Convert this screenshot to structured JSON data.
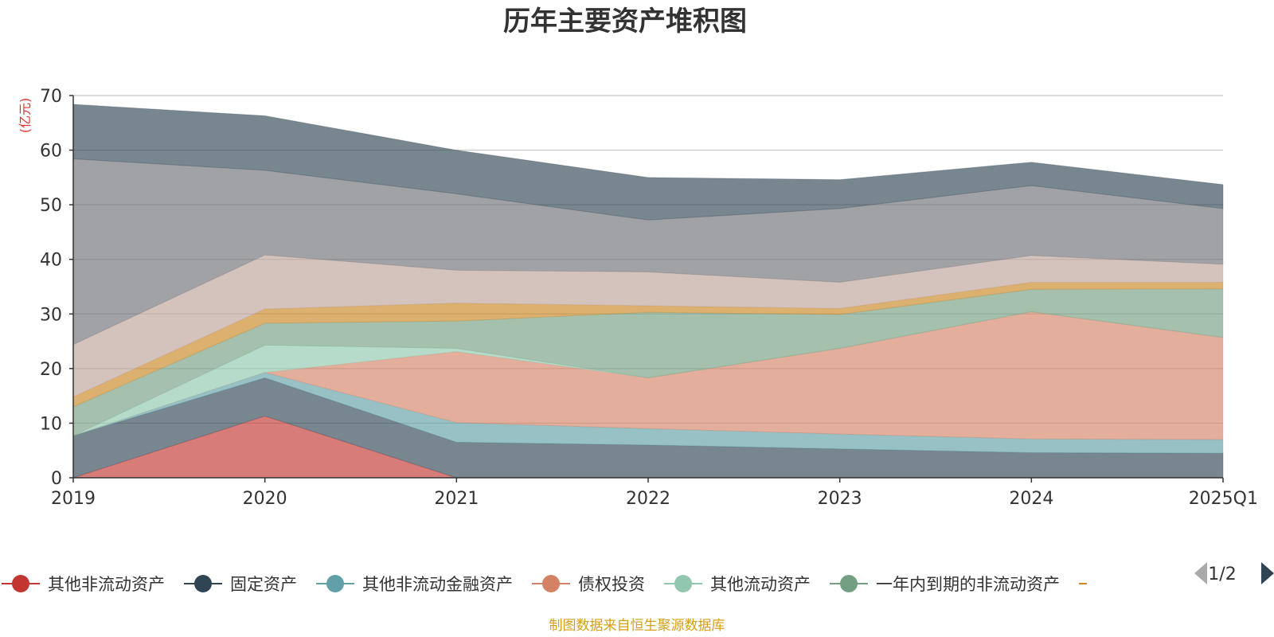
{
  "chart_data": {
    "type": "area",
    "stacked": true,
    "title": "历年主要资产堆积图",
    "unit_label": "(亿元)",
    "categories": [
      "2019",
      "2020",
      "2021",
      "2022",
      "2023",
      "2024",
      "2025Q1"
    ],
    "ylim": [
      0,
      70
    ],
    "yticks": [
      0,
      10,
      20,
      30,
      40,
      50,
      60,
      70
    ],
    "grid": true,
    "series": [
      {
        "name": "其他非流动资产",
        "color": "#c23531",
        "values": [
          0,
          11.3,
          0,
          0,
          0,
          0,
          0
        ]
      },
      {
        "name": "固定资产",
        "color": "#2f4554",
        "values": [
          7.7,
          7.0,
          6.5,
          6.0,
          5.3,
          4.6,
          4.5
        ]
      },
      {
        "name": "其他非流动金融资产",
        "color": "#61a0a8",
        "values": [
          0,
          1.0,
          3.6,
          3.0,
          2.7,
          2.5,
          2.5
        ]
      },
      {
        "name": "债权投资",
        "color": "#d48265",
        "values": [
          0,
          0,
          13.0,
          9.3,
          15.7,
          23.3,
          18.7
        ]
      },
      {
        "name": "其他流动资产",
        "color": "#91c7ae",
        "values": [
          0,
          5.0,
          0.6,
          0,
          0,
          0,
          0
        ]
      },
      {
        "name": "一年内到期的非流动资产",
        "color": "#749f83",
        "values": [
          5.3,
          4.0,
          5.0,
          12.0,
          6.2,
          4.1,
          8.9
        ]
      },
      {
        "name": "",
        "color": "#ca8622",
        "values": [
          1.8,
          2.6,
          3.3,
          1.2,
          1.1,
          1.3,
          1.2
        ]
      },
      {
        "name": "",
        "color": "#bda29a",
        "values": [
          9.6,
          9.9,
          6.0,
          6.2,
          4.8,
          4.9,
          3.3
        ]
      },
      {
        "name": "",
        "color": "#6e7074",
        "values": [
          34.0,
          15.5,
          14.0,
          9.5,
          13.5,
          12.8,
          10.2
        ]
      },
      {
        "name": "",
        "color": "#2f4554",
        "values": [
          10.0,
          10.0,
          8.0,
          7.8,
          5.3,
          4.3,
          4.4
        ]
      }
    ],
    "legend": {
      "position": "bottom",
      "page": "1/2"
    },
    "source": "制图数据来自恒生聚源数据库"
  }
}
